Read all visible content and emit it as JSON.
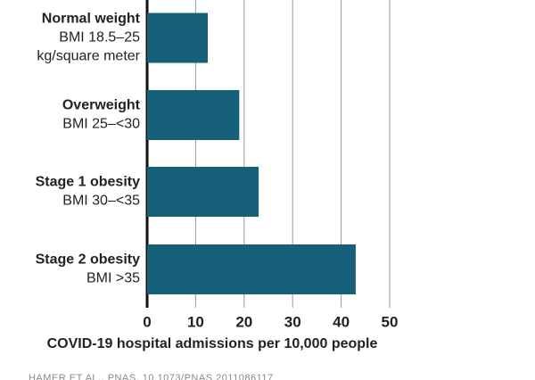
{
  "chart_data": {
    "type": "bar",
    "orientation": "horizontal",
    "categories": [
      "Normal weight",
      "Overweight",
      "Stage 1 obesity",
      "Stage 2 obesity"
    ],
    "category_descriptions": [
      [
        "BMI 18.5–25",
        "kg/square meter"
      ],
      [
        "BMI 25–<30"
      ],
      [
        "BMI 30–<35"
      ],
      [
        "BMI >35"
      ]
    ],
    "values": [
      12.5,
      19,
      23,
      43
    ],
    "color": "#17607a",
    "xlim": [
      0,
      50
    ],
    "xticks": [
      0,
      10,
      20,
      30,
      40,
      50
    ],
    "grid": true,
    "x_label": "COVID-19 hospital admissions per 10,000 people",
    "source": "HAMER ET AL., PNAS, 10.1073/PNAS.2011086117"
  }
}
